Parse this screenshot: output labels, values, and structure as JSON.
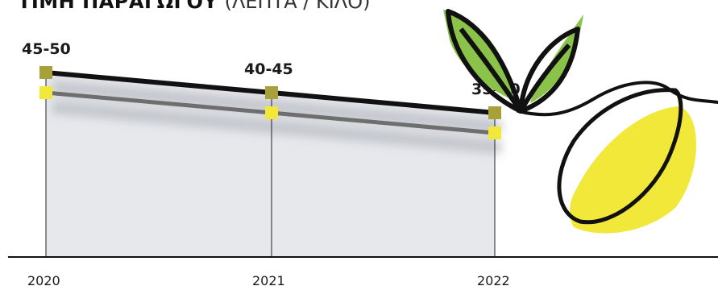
{
  "title": {
    "main": "ΤΙΜΗ ΠΑΡΑΓΩΓΟΥ",
    "sub": "(ΛΕΠΤΑ / ΚΙΛΟ)"
  },
  "chart_data": {
    "type": "line",
    "title": "ΤΙΜΗ ΠΑΡΑΓΩΓΟΥ (ΛΕΠΤΑ / ΚΙΛΟ)",
    "categories": [
      "2020",
      "2021",
      "2022"
    ],
    "ylim": [
      30,
      55
    ],
    "grid": false,
    "series": [
      {
        "color": "#a8a038",
        "line_color": "#111111",
        "range_labels": [
          "45-50",
          "40-45",
          "35-40"
        ],
        "values": [
          50,
          45,
          40
        ]
      },
      {
        "color": "#f1e83a",
        "line_color": "#6e6e6e",
        "values": [
          45,
          40,
          35
        ]
      }
    ],
    "colors": {
      "leaf_green": "#8bc34a",
      "lemon_yellow": "#f1e83a",
      "outline": "#111111"
    }
  }
}
